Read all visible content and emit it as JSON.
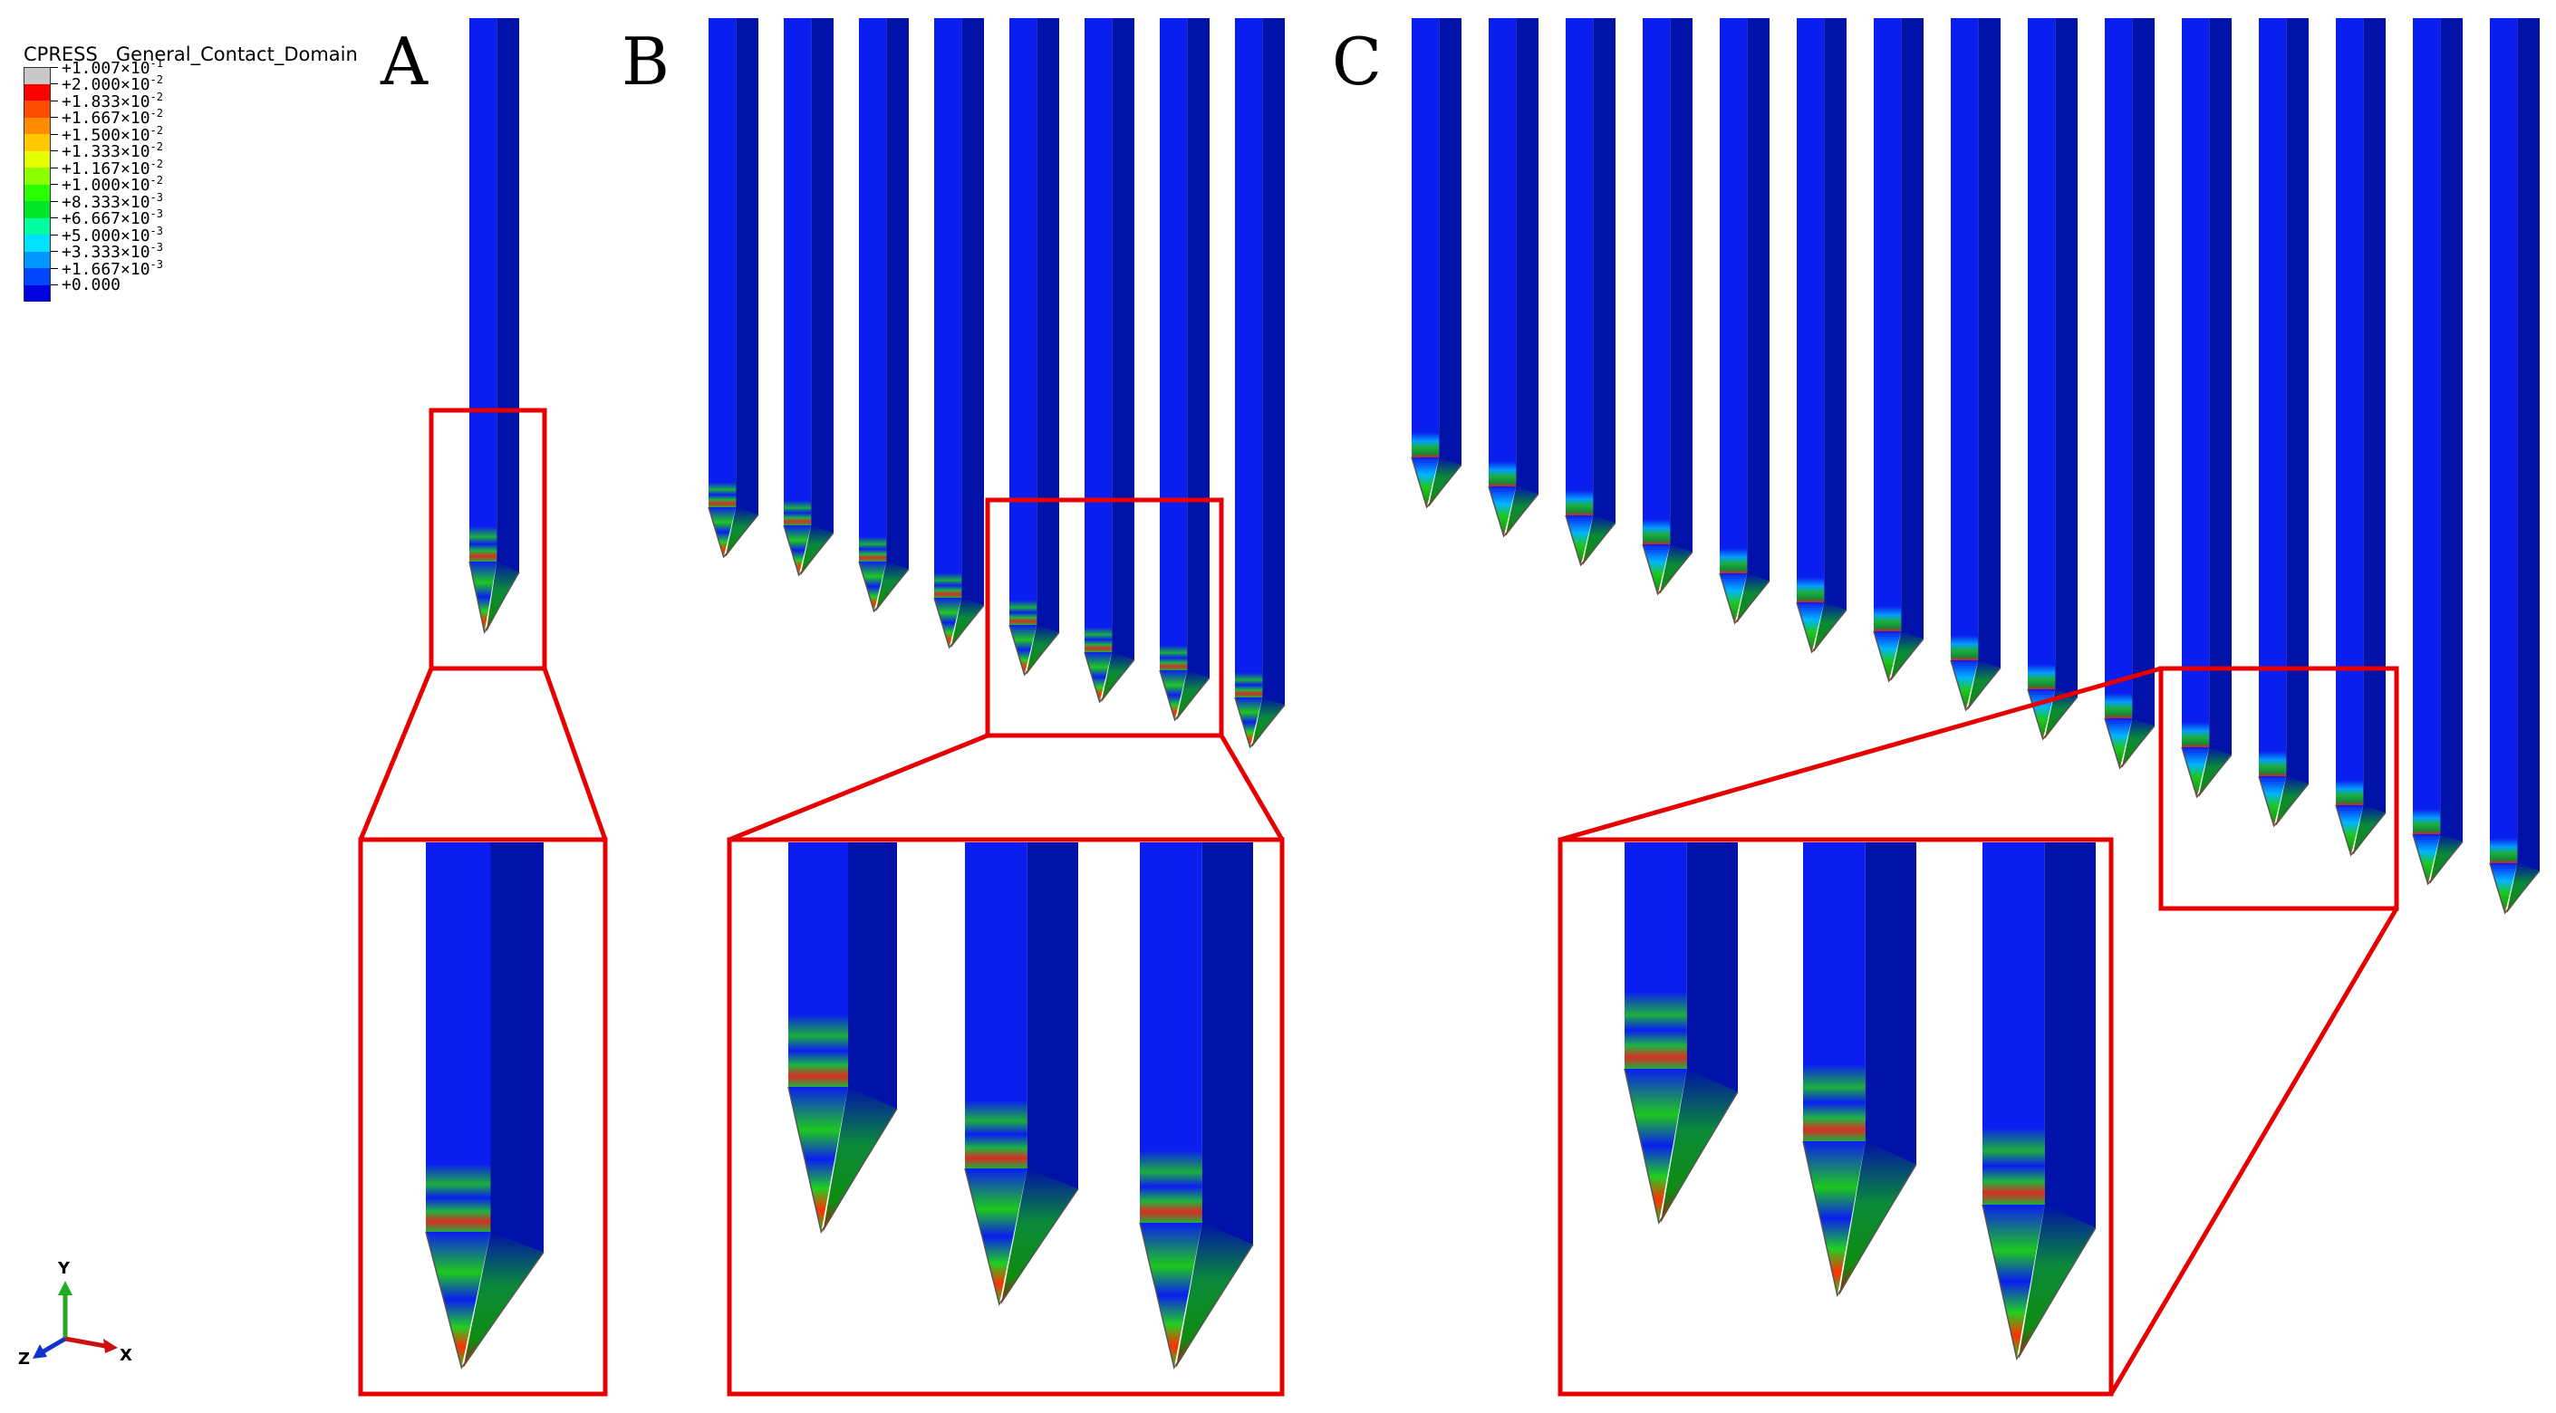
{
  "legend": {
    "title": "CPRESS   General_Contact_Domain",
    "entries": [
      {
        "mantissa": "+1.007",
        "exp": "-1",
        "color": "#c8c8c8"
      },
      {
        "mantissa": "+2.000",
        "exp": "-2",
        "color": "#ff0000"
      },
      {
        "mantissa": "+1.833",
        "exp": "-2",
        "color": "#ff4d00"
      },
      {
        "mantissa": "+1.667",
        "exp": "-2",
        "color": "#ff8c00"
      },
      {
        "mantissa": "+1.500",
        "exp": "-2",
        "color": "#ffc800"
      },
      {
        "mantissa": "+1.333",
        "exp": "-2",
        "color": "#e6ff00"
      },
      {
        "mantissa": "+1.167",
        "exp": "-2",
        "color": "#8cff00"
      },
      {
        "mantissa": "+1.000",
        "exp": "-2",
        "color": "#2aff00"
      },
      {
        "mantissa": "+8.333",
        "exp": "-3",
        "color": "#00e62a"
      },
      {
        "mantissa": "+6.667",
        "exp": "-3",
        "color": "#00ffa0"
      },
      {
        "mantissa": "+5.000",
        "exp": "-3",
        "color": "#00e0ff"
      },
      {
        "mantissa": "+3.333",
        "exp": "-3",
        "color": "#0096ff"
      },
      {
        "mantissa": "+1.667",
        "exp": "-3",
        "color": "#0046ff"
      },
      {
        "mantissa": "+0.000",
        "exp": "",
        "color": "#0000e0"
      }
    ]
  },
  "panels": {
    "a_label": "A",
    "b_label": "B",
    "c_label": "C"
  },
  "axes": {
    "y": "Y",
    "z": "Z",
    "x": "X"
  },
  "colors": {
    "rod_face": "#0a1ef0",
    "rod_side": "#0012a8",
    "highlight_box": "#e60000",
    "contact_green": "#1ec81e",
    "contact_red": "#ff1a00",
    "contact_cyan": "#00c8e6"
  }
}
